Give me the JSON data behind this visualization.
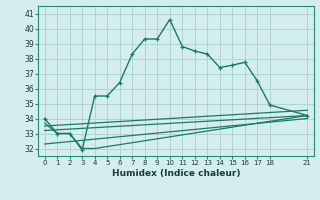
{
  "xlabel": "Humidex (Indice chaleur)",
  "bg_color": "#d4eded",
  "grid_color": "#afd4d4",
  "line_color": "#1a7a6a",
  "xlim": [
    -0.5,
    21.5
  ],
  "ylim": [
    31.5,
    41.5
  ],
  "xticks": [
    0,
    1,
    2,
    3,
    4,
    5,
    6,
    7,
    8,
    9,
    10,
    11,
    12,
    13,
    14,
    15,
    16,
    17,
    18,
    21
  ],
  "yticks": [
    32,
    33,
    34,
    35,
    36,
    37,
    38,
    39,
    40,
    41
  ],
  "curve1_x": [
    0,
    1,
    2,
    3,
    4,
    5,
    6,
    7,
    8,
    9,
    10,
    11,
    12,
    13,
    14,
    15,
    16,
    17,
    18,
    21
  ],
  "curve1_y": [
    34.0,
    33.0,
    33.0,
    31.9,
    35.5,
    35.5,
    36.4,
    38.3,
    39.3,
    39.3,
    40.6,
    38.8,
    38.5,
    38.3,
    37.4,
    37.55,
    37.75,
    36.5,
    34.9,
    34.2
  ],
  "curve2_x": [
    0,
    1,
    2,
    3,
    4,
    21
  ],
  "curve2_y": [
    33.7,
    33.0,
    33.0,
    32.0,
    32.0,
    34.2
  ],
  "curve3_x": [
    0,
    21
  ],
  "curve3_y": [
    33.5,
    34.55
  ],
  "curve4_x": [
    0,
    21
  ],
  "curve4_y": [
    33.2,
    34.2
  ],
  "curve5_x": [
    0,
    21
  ],
  "curve5_y": [
    32.3,
    34.0
  ]
}
